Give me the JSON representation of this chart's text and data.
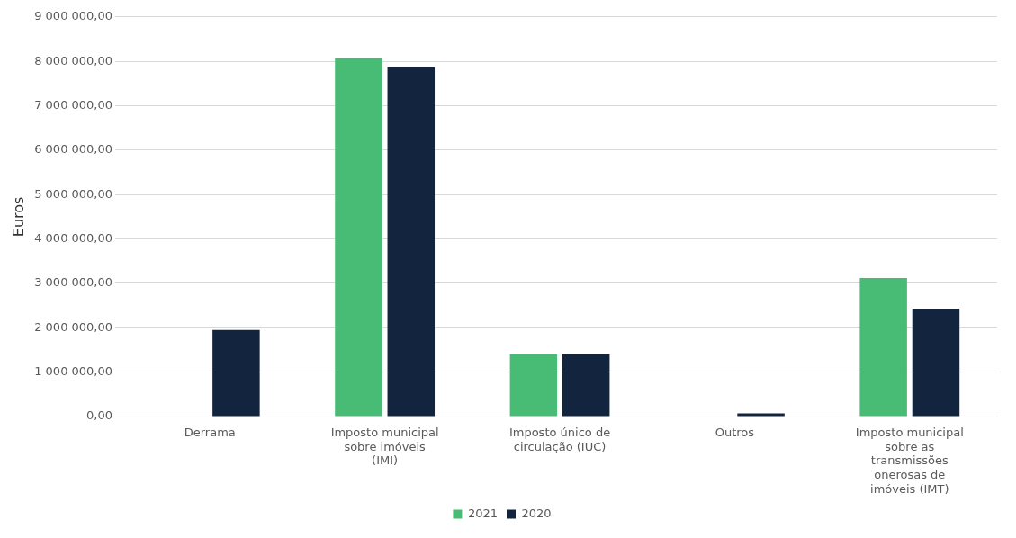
{
  "chart_data": {
    "type": "bar",
    "ylabel": "Euros",
    "categories": [
      "Derrama",
      "Imposto municipal sobre imóveis (IMI)",
      "Imposto único de circulação (IUC)",
      "Outros",
      "Imposto municipal sobre as transmissões onerosas de imóveis (IMT)"
    ],
    "series": [
      {
        "name": "2021",
        "color": "#48bb74",
        "values": [
          0,
          8070000,
          1410000,
          0,
          3120000
        ]
      },
      {
        "name": "2020",
        "color": "#13243f",
        "values": [
          1950000,
          7870000,
          1410000,
          70000,
          2430000
        ]
      }
    ],
    "ylim": [
      0,
      9000000
    ],
    "yticks": [
      {
        "value": 0,
        "label": "0,00"
      },
      {
        "value": 1000000,
        "label": "1 000 000,00"
      },
      {
        "value": 2000000,
        "label": "2 000 000,00"
      },
      {
        "value": 3000000,
        "label": "3 000 000,00"
      },
      {
        "value": 4000000,
        "label": "4 000 000,00"
      },
      {
        "value": 5000000,
        "label": "5 000 000,00"
      },
      {
        "value": 6000000,
        "label": "6 000 000,00"
      },
      {
        "value": 7000000,
        "label": "7 000 000,00"
      },
      {
        "value": 8000000,
        "label": "8 000 000,00"
      },
      {
        "value": 9000000,
        "label": "9 000 000,00"
      }
    ],
    "grid": "y",
    "legend": "bottom"
  }
}
